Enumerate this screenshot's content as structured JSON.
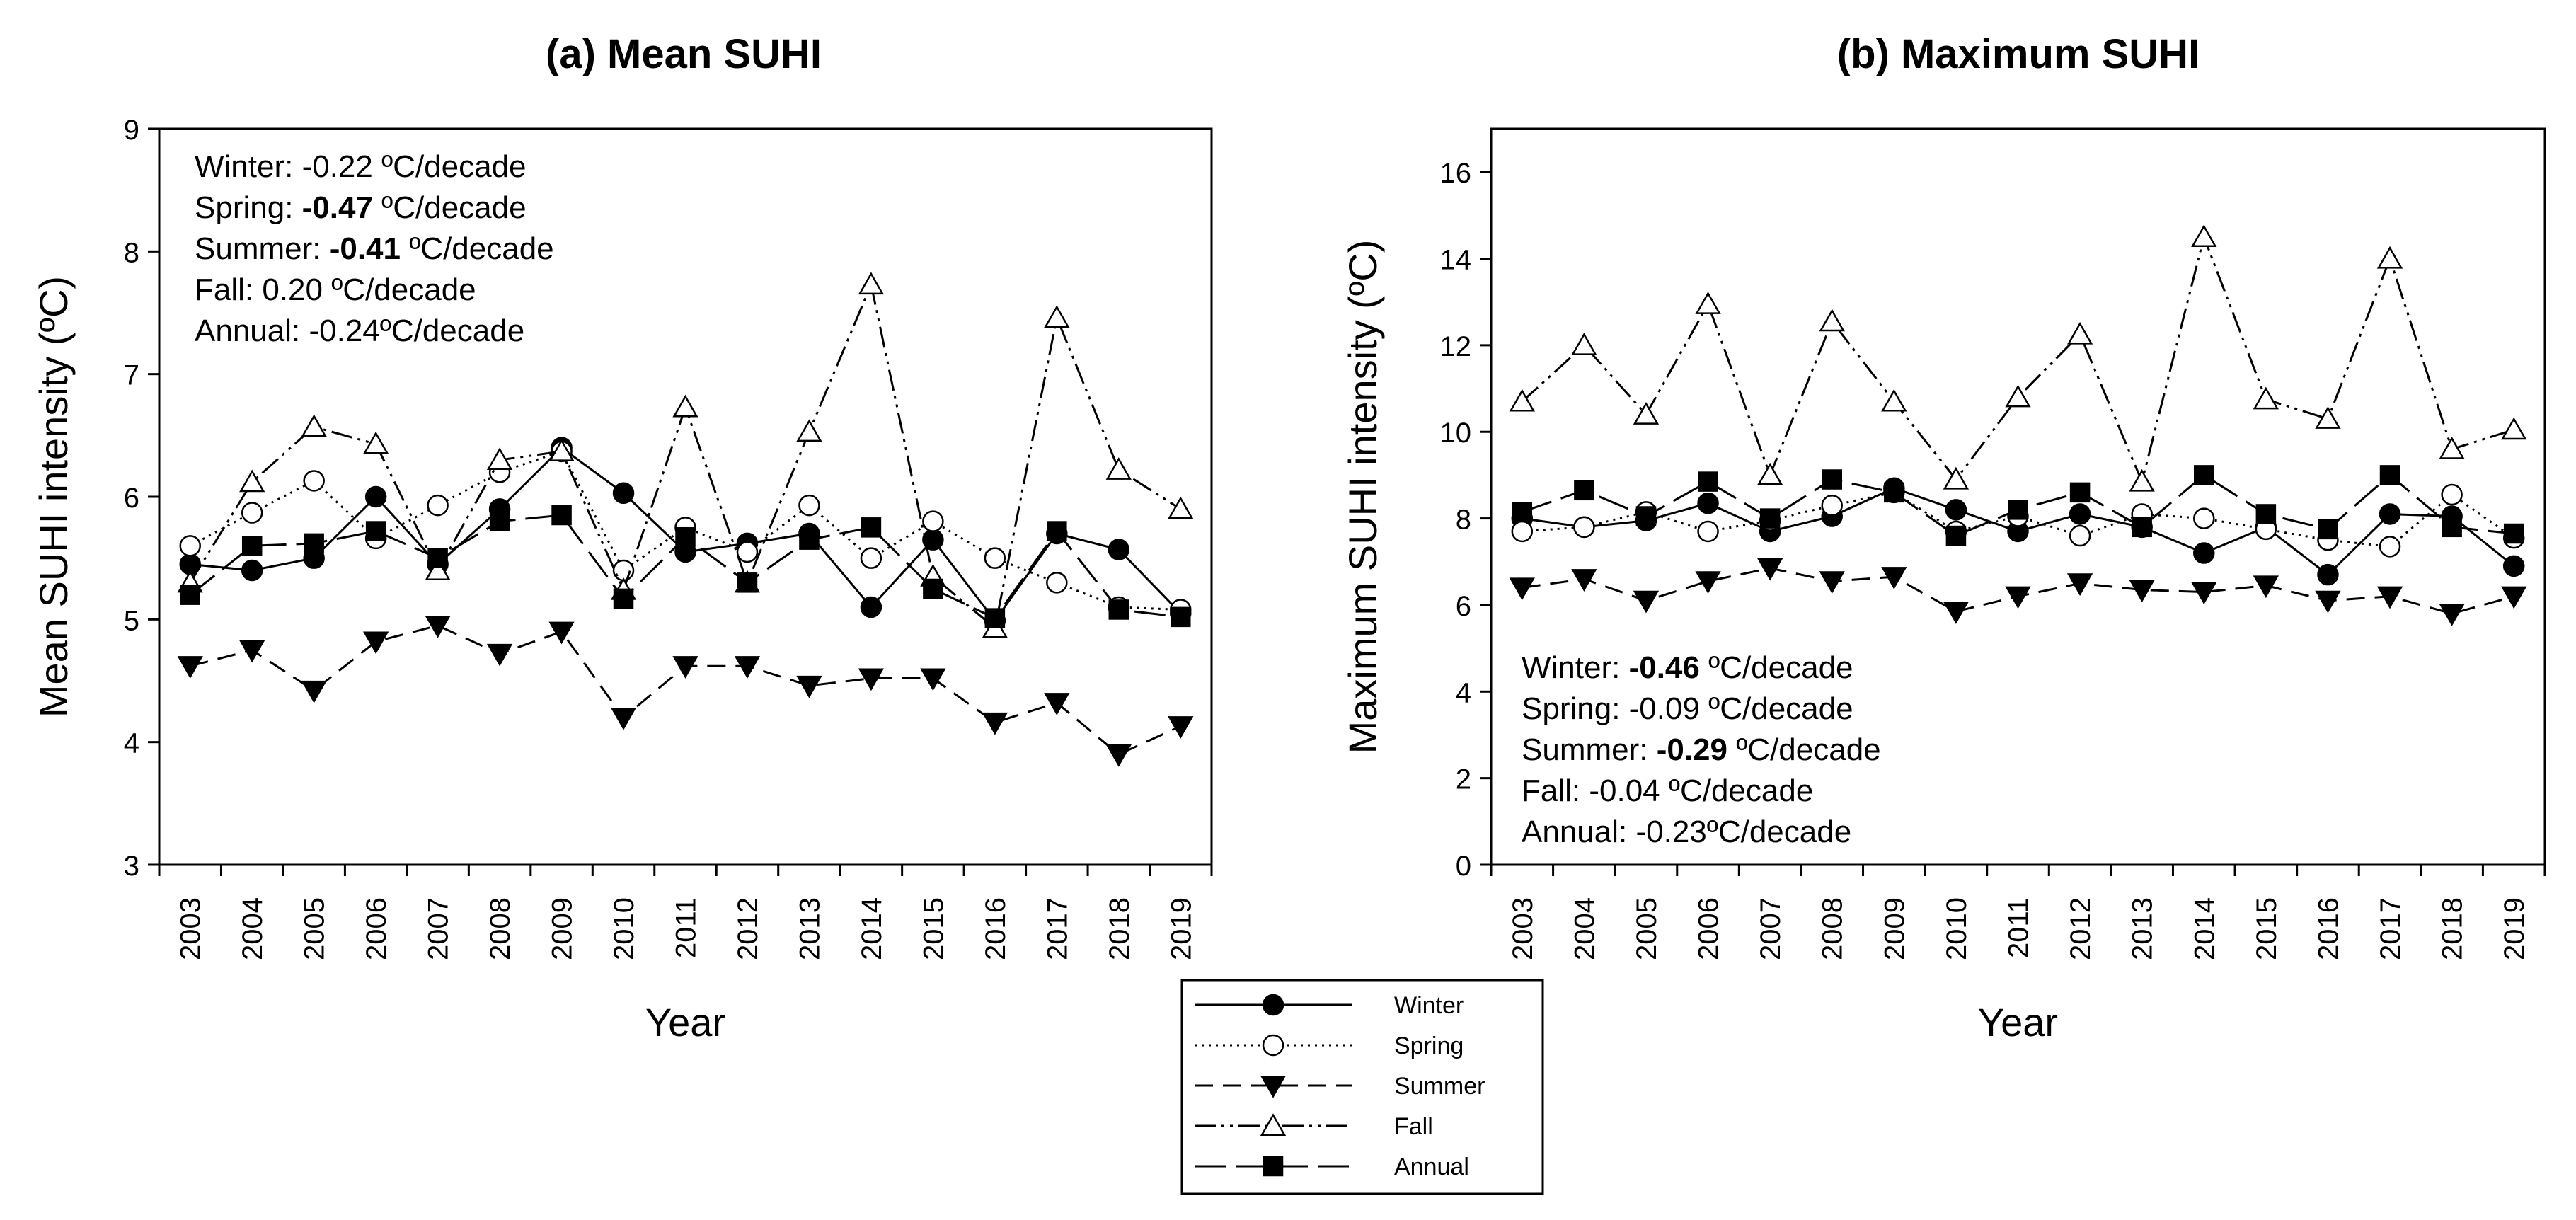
{
  "legend": {
    "items": [
      {
        "key": "winter",
        "label": "Winter"
      },
      {
        "key": "spring",
        "label": "Spring"
      },
      {
        "key": "summer",
        "label": "Summer"
      },
      {
        "key": "fall",
        "label": "Fall"
      },
      {
        "key": "annual",
        "label": "Annual"
      }
    ]
  },
  "series_styles": {
    "winter": {
      "dash": "none",
      "marker": "circle",
      "fill": "filled"
    },
    "spring": {
      "dash": "dotted",
      "marker": "circle",
      "fill": "open"
    },
    "summer": {
      "dash": "dashed",
      "marker": "triangle-down",
      "fill": "filled"
    },
    "fall": {
      "dash": "dash-dot-dot",
      "marker": "triangle-up",
      "fill": "open"
    },
    "annual": {
      "dash": "long-dash",
      "marker": "square",
      "fill": "filled"
    }
  },
  "chart_data": [
    {
      "type": "line",
      "title": "(a) Mean SUHI",
      "xlabel": "Year",
      "ylabel": "Mean SUHI intensity (ºC)",
      "ylim": [
        3,
        9
      ],
      "yticks": [
        3,
        4,
        5,
        6,
        7,
        8,
        9
      ],
      "categories": [
        "2003",
        "2004",
        "2005",
        "2006",
        "2007",
        "2008",
        "2009",
        "2010",
        "2011",
        "2012",
        "2013",
        "2014",
        "2015",
        "2016",
        "2017",
        "2018",
        "2019"
      ],
      "series": [
        {
          "name": "Winter",
          "key": "winter",
          "values": [
            5.45,
            5.4,
            5.5,
            6.0,
            5.45,
            5.9,
            6.4,
            6.03,
            5.55,
            5.62,
            5.7,
            5.1,
            5.65,
            4.99,
            5.7,
            5.57,
            5.05
          ]
        },
        {
          "name": "Spring",
          "key": "spring",
          "values": [
            5.6,
            5.87,
            6.13,
            5.66,
            5.93,
            6.2,
            6.37,
            5.4,
            5.75,
            5.55,
            5.93,
            5.5,
            5.8,
            5.5,
            5.3,
            5.1,
            5.08
          ]
        },
        {
          "name": "Summer",
          "key": "summer",
          "values": [
            4.62,
            4.75,
            4.42,
            4.82,
            4.95,
            4.72,
            4.9,
            4.2,
            4.62,
            4.62,
            4.46,
            4.52,
            4.52,
            4.16,
            4.32,
            3.9,
            4.13
          ]
        },
        {
          "name": "Fall",
          "key": "fall",
          "values": [
            5.3,
            6.12,
            6.57,
            6.43,
            5.4,
            6.3,
            6.37,
            5.24,
            6.73,
            5.3,
            6.53,
            7.73,
            5.35,
            4.93,
            7.46,
            6.22,
            5.9
          ]
        },
        {
          "name": "Annual",
          "key": "annual",
          "values": [
            5.2,
            5.6,
            5.62,
            5.72,
            5.5,
            5.8,
            5.85,
            5.17,
            5.67,
            5.3,
            5.65,
            5.75,
            5.25,
            5.01,
            5.72,
            5.08,
            5.02
          ]
        }
      ],
      "annotations": [
        {
          "label": "Winter: ",
          "value": "-0.22",
          "unit": " ºC/decade",
          "bold": false
        },
        {
          "label": "Spring: ",
          "value": "-0.47",
          "unit": " ºC/decade",
          "bold": true
        },
        {
          "label": "Summer: ",
          "value": "-0.41",
          "unit": " ºC/decade",
          "bold": true
        },
        {
          "label": "Fall: ",
          "value": "0.20",
          "unit": " ºC/decade",
          "bold": false
        },
        {
          "label": "Annual: ",
          "value": "-0.24",
          "unit": "ºC/decade",
          "bold": false
        }
      ]
    },
    {
      "type": "line",
      "title": "(b) Maximum SUHI",
      "xlabel": "Year",
      "ylabel": "Maximum SUHI intensity (ºC)",
      "ylim": [
        0,
        17
      ],
      "yticks": [
        0,
        2,
        4,
        6,
        8,
        10,
        12,
        14,
        16
      ],
      "categories": [
        "2003",
        "2004",
        "2005",
        "2006",
        "2007",
        "2008",
        "2009",
        "2010",
        "2011",
        "2012",
        "2013",
        "2014",
        "2015",
        "2016",
        "2017",
        "2018",
        "2019"
      ],
      "series": [
        {
          "name": "Winter",
          "key": "winter",
          "values": [
            8.0,
            7.8,
            7.95,
            8.35,
            7.7,
            8.05,
            8.7,
            8.2,
            7.7,
            8.1,
            7.8,
            7.2,
            7.8,
            6.7,
            8.1,
            8.05,
            6.9
          ]
        },
        {
          "name": "Spring",
          "key": "spring",
          "values": [
            7.7,
            7.8,
            8.15,
            7.7,
            7.95,
            8.3,
            8.6,
            7.7,
            8.05,
            7.6,
            8.1,
            8.0,
            7.75,
            7.5,
            7.35,
            8.55,
            7.55
          ]
        },
        {
          "name": "Summer",
          "key": "summer",
          "values": [
            6.4,
            6.6,
            6.1,
            6.55,
            6.85,
            6.55,
            6.65,
            5.85,
            6.2,
            6.5,
            6.35,
            6.3,
            6.45,
            6.1,
            6.2,
            5.8,
            6.2
          ]
        },
        {
          "name": "Fall",
          "key": "fall",
          "values": [
            10.7,
            12.0,
            10.4,
            12.95,
            9.0,
            12.55,
            10.7,
            8.9,
            10.8,
            12.25,
            8.85,
            14.5,
            10.75,
            10.3,
            14.0,
            9.6,
            10.05
          ]
        },
        {
          "name": "Annual",
          "key": "annual",
          "values": [
            8.15,
            8.65,
            8.05,
            8.85,
            8.0,
            8.9,
            8.6,
            7.6,
            8.2,
            8.6,
            7.8,
            9.0,
            8.1,
            7.75,
            9.0,
            7.8,
            7.65
          ]
        }
      ],
      "annotations": [
        {
          "label": "Winter: ",
          "value": "-0.46",
          "unit": " ºC/decade",
          "bold": true
        },
        {
          "label": "Spring: ",
          "value": "-0.09",
          "unit": " ºC/decade",
          "bold": false
        },
        {
          "label": "Summer: ",
          "value": "-0.29",
          "unit": " ºC/decade",
          "bold": true
        },
        {
          "label": "Fall: ",
          "value": "-0.04",
          "unit": " ºC/decade",
          "bold": false
        },
        {
          "label": "Annual: ",
          "value": "-0.23",
          "unit": "ºC/decade",
          "bold": false
        }
      ]
    }
  ]
}
